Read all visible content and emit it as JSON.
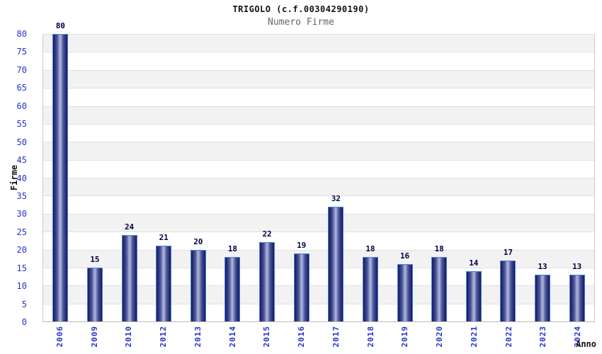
{
  "chart_data": {
    "type": "bar",
    "title": "TRIGOLO (c.f.00304290190)",
    "subtitle": "Numero Firme",
    "xlabel": "Anno",
    "ylabel": "Firme",
    "categories": [
      "2006",
      "2009",
      "2010",
      "2012",
      "2013",
      "2014",
      "2015",
      "2016",
      "2017",
      "2018",
      "2019",
      "2020",
      "2021",
      "2022",
      "2023",
      "2024"
    ],
    "values": [
      80,
      15,
      24,
      21,
      20,
      18,
      22,
      19,
      32,
      18,
      16,
      18,
      14,
      17,
      13,
      13
    ],
    "ylim": [
      0,
      80
    ],
    "ytick_step": 5,
    "yticks": [
      0,
      5,
      10,
      15,
      20,
      25,
      30,
      35,
      40,
      45,
      50,
      55,
      60,
      65,
      70,
      75,
      80
    ],
    "grid": "horizontal",
    "legend": "none",
    "colors": {
      "tick_label": "#2233cc",
      "value_label": "#000044",
      "bar_dark": "#141a5e",
      "bar_mid": "#4a5397",
      "bar_light": "#b2bade",
      "bar_border": "#4a80e0",
      "band_gray": "#f2f2f2",
      "band_white": "#ffffff",
      "gridline": "#e0e0e0",
      "title_color": "#111111",
      "subtitle_color": "#666666"
    }
  }
}
